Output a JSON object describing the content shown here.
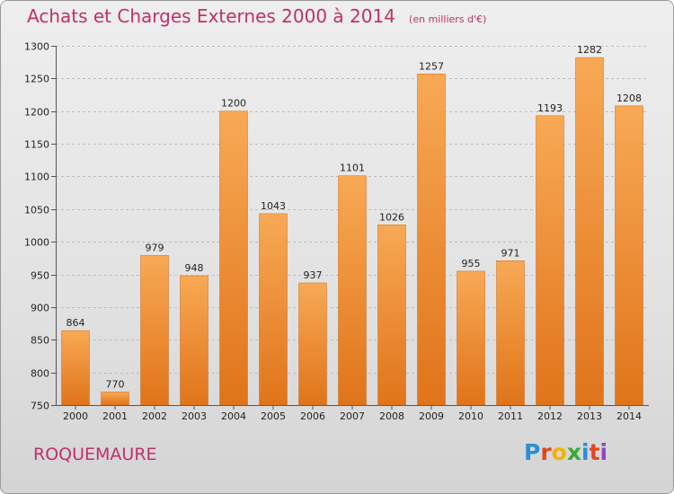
{
  "header": {
    "title": "Achats et Charges Externes 2000 à 2014",
    "unit": "(en milliers d'€)"
  },
  "footer": {
    "commune": "ROQUEMAURE",
    "logo_text": "Proxiti",
    "logo_colors": [
      "#2a8fd6",
      "#e0471f",
      "#f0b400",
      "#3aa935",
      "#2a8fd6",
      "#e0471f",
      "#8a4bbf"
    ]
  },
  "colors": {
    "title": "#c0306a",
    "bar_light": "#f8a955",
    "bar_dark": "#e0741a",
    "grid": "#bdbdbd"
  },
  "chart_data": {
    "type": "bar",
    "title": "Achats et Charges Externes 2000 à 2014",
    "xlabel": "",
    "ylabel": "",
    "categories": [
      "2000",
      "2001",
      "2002",
      "2003",
      "2004",
      "2005",
      "2006",
      "2007",
      "2008",
      "2009",
      "2010",
      "2011",
      "2012",
      "2013",
      "2014"
    ],
    "values": [
      864,
      770,
      979,
      948,
      1200,
      1043,
      937,
      1101,
      1026,
      1257,
      955,
      971,
      1193,
      1282,
      1208
    ],
    "ylim": [
      750,
      1300
    ],
    "yticks": [
      750,
      800,
      850,
      900,
      950,
      1000,
      1050,
      1100,
      1150,
      1200,
      1250,
      1300
    ],
    "grid": true,
    "data_labels": true
  }
}
